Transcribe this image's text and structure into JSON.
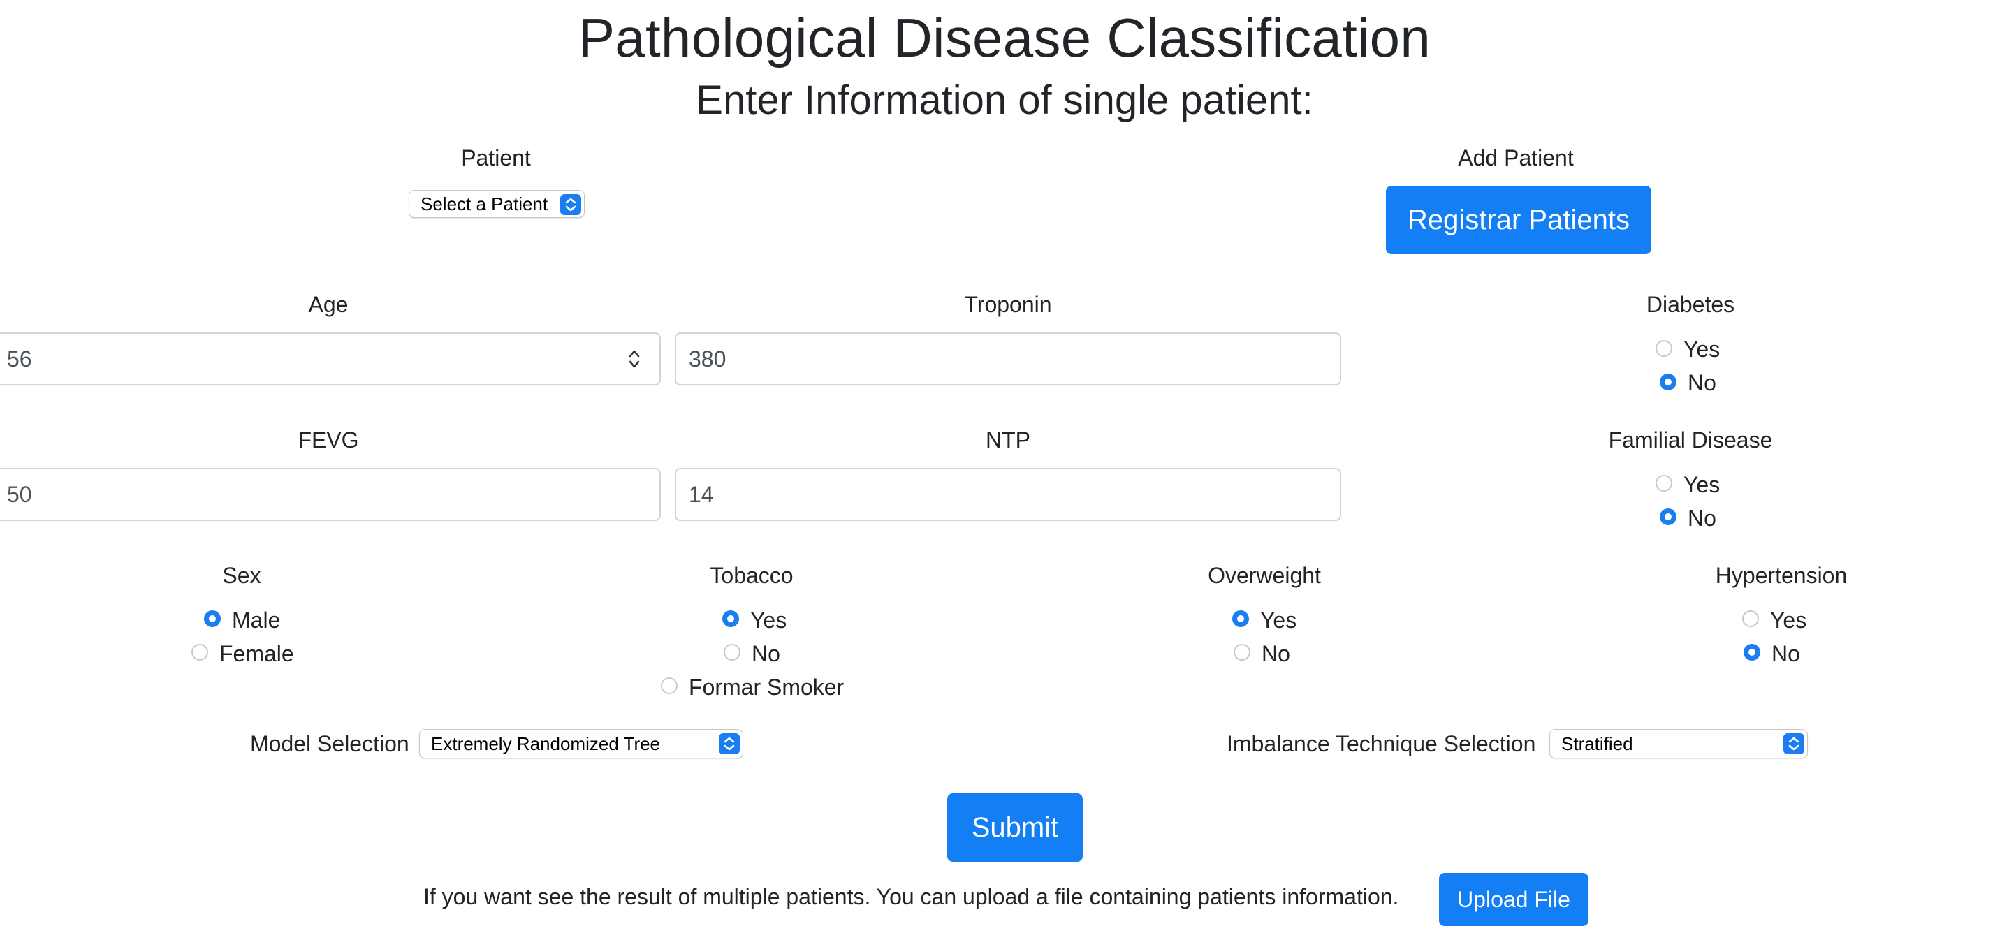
{
  "header": {
    "title": "Pathological Disease Classification",
    "subtitle": "Enter Information of single patient:"
  },
  "patient": {
    "label": "Patient",
    "selected": "Select a Patient"
  },
  "add_patient": {
    "label": "Add Patient",
    "button": "Registrar Patients"
  },
  "fields": {
    "age": {
      "label": "Age",
      "value": "56"
    },
    "troponin": {
      "label": "Troponin",
      "value": "380"
    },
    "fevg": {
      "label": "FEVG",
      "value": "50"
    },
    "ntp": {
      "label": "NTP",
      "value": "14"
    }
  },
  "diabetes": {
    "label": "Diabetes",
    "options": [
      "Yes",
      "No"
    ],
    "selected": "No"
  },
  "familial": {
    "label": "Familial Disease",
    "options": [
      "Yes",
      "No"
    ],
    "selected": "No"
  },
  "sex": {
    "label": "Sex",
    "options": [
      "Male",
      "Female"
    ],
    "selected": "Male"
  },
  "tobacco": {
    "label": "Tobacco",
    "options": [
      "Yes",
      "No",
      "Formar Smoker"
    ],
    "selected": "Yes"
  },
  "overweight": {
    "label": "Overweight",
    "options": [
      "Yes",
      "No"
    ],
    "selected": "Yes"
  },
  "hypertension": {
    "label": "Hypertension",
    "options": [
      "Yes",
      "No"
    ],
    "selected": "No"
  },
  "model": {
    "label": "Model Selection",
    "selected": "Extremely Randomized Tree"
  },
  "imbalance": {
    "label": "Imbalance Technique Selection",
    "selected": "Stratified"
  },
  "submit": {
    "label": "Submit"
  },
  "upload": {
    "text": "If you want see the result of multiple patients. You can upload a file containing patients information.",
    "button": "Upload File"
  },
  "colors": {
    "accent": "#147ff5",
    "text": "#212529",
    "border": "#ced4da"
  }
}
